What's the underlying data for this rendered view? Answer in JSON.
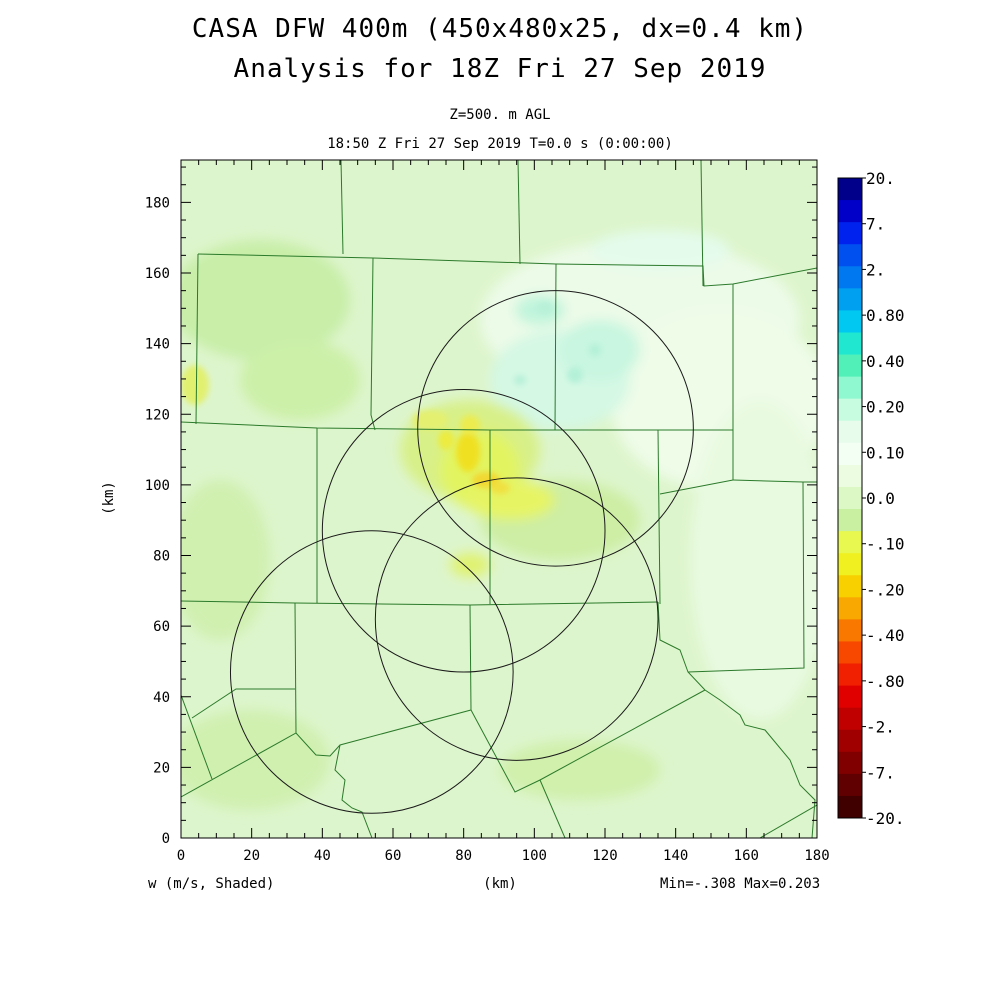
{
  "header": {
    "title_line1": "CASA DFW 400m (450x480x25, dx=0.4 km)",
    "title_line2": "Analysis for 18Z Fri 27 Sep 2019",
    "level": "Z=500. m AGL",
    "time": "18:50 Z Fri 27 Sep 2019    T=0.0 s (0:00:00)"
  },
  "axes": {
    "x_label": "(km)",
    "y_label": "(km)",
    "x_ticks": [
      "0",
      "20",
      "40",
      "60",
      "80",
      "100",
      "120",
      "140",
      "160",
      "180"
    ],
    "y_ticks": [
      "0",
      "20",
      "40",
      "60",
      "80",
      "100",
      "120",
      "140",
      "160",
      "180"
    ],
    "x_range_km": [
      0,
      180
    ],
    "y_range_km": [
      0,
      192
    ]
  },
  "footer": {
    "field": "w (m/s, Shaded)",
    "units": "(km)",
    "minmax": "Min=-.308 Max=0.203"
  },
  "colorbar": {
    "labels": [
      "20.",
      "7.",
      "2.",
      "0.80",
      "0.40",
      "0.20",
      "0.10",
      "0.0",
      "-.10",
      "-.20",
      "-.40",
      "-.80",
      "-2.",
      "-7.",
      "-20."
    ],
    "colors": [
      "#00008b",
      "#0000c8",
      "#0022ee",
      "#0050f0",
      "#0078f0",
      "#00a0f0",
      "#00c8f0",
      "#20e8d0",
      "#50f0b8",
      "#90f8d0",
      "#c8fce0",
      "#e8fcec",
      "#f4fff4",
      "#ecfce0",
      "#dcf8c4",
      "#c8f0a0",
      "#e8f850",
      "#f0f020",
      "#f8d000",
      "#f8a800",
      "#f87800",
      "#f84800",
      "#f02000",
      "#e00000",
      "#c00000",
      "#a00000",
      "#800000",
      "#600000",
      "#400000"
    ]
  },
  "map": {
    "background_color": "#ddf5cc",
    "radar_rings_km": [
      {
        "cx": 106,
        "cy": 116,
        "r": 39
      },
      {
        "cx": 80,
        "cy": 87,
        "r": 40
      },
      {
        "cx": 95,
        "cy": 62,
        "r": 40
      },
      {
        "cx": 54,
        "cy": 47,
        "r": 40
      }
    ]
  },
  "chart_data": {
    "type": "heatmap",
    "field": "w (m/s, Shaded)",
    "level": "Z=500. m AGL",
    "xlabel": "(km)",
    "ylabel": "(km)",
    "xlim": [
      0,
      180
    ],
    "ylim": [
      0,
      192
    ],
    "min": -0.308,
    "max": 0.203,
    "contour_levels": [
      -20,
      -7,
      -2,
      -0.8,
      -0.4,
      -0.2,
      -0.1,
      0,
      0.1,
      0.2,
      0.4,
      0.8,
      2,
      7,
      20
    ]
  }
}
